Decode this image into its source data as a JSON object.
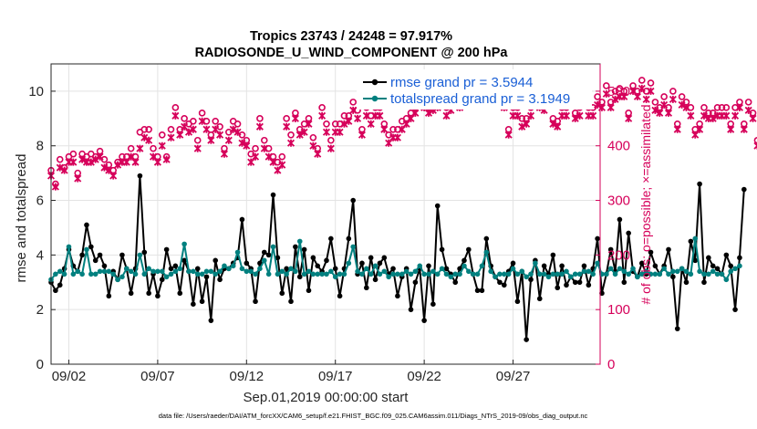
{
  "chart_data": {
    "type": "line",
    "title_line1": "Tropics 23743 / 24248 = 97.917%",
    "title_line2": "RADIOSONDE_U_WIND_COMPONENT @ 200 hPa",
    "xlabel": "Sep.01,2019 00:00:00 start",
    "ylabel": "rmse and totalspread",
    "ylabel_right": "# of obs: o=possible; ×=assimilated",
    "footer": "data file: /Users/raeder/DAI/ATM_forcXX/CAM6_setup/f.e21.FHIST_BGC.f09_025.CAM6assim.011/Diags_NTrS_2019-09/obs_diag_output.nc",
    "xlim": [
      0,
      30.9
    ],
    "ylim": [
      0,
      11
    ],
    "ylim_right": [
      0,
      550
    ],
    "x_ticks": [
      {
        "pos": 1,
        "label": "09/02"
      },
      {
        "pos": 6,
        "label": "09/07"
      },
      {
        "pos": 11,
        "label": "09/12"
      },
      {
        "pos": 16,
        "label": "09/17"
      },
      {
        "pos": 21,
        "label": "09/22"
      },
      {
        "pos": 26,
        "label": "09/27"
      }
    ],
    "y_ticks": [
      "0",
      "2",
      "4",
      "6",
      "8",
      "10"
    ],
    "y_ticks_right": [
      "0",
      "100",
      "200",
      "300",
      "400",
      "500"
    ],
    "time_step_days": 0.25,
    "legend": [
      {
        "label": "rmse grand pr = 3.5944",
        "color": "#000000"
      },
      {
        "label": "totalspread grand pr = 3.1949",
        "color": "#00807f"
      }
    ],
    "series": [
      {
        "name": "rmse",
        "color": "#000000",
        "values": [
          3.0,
          2.7,
          2.9,
          3.5,
          4.2,
          3.6,
          3.4,
          4.0,
          5.1,
          4.3,
          3.8,
          4.0,
          3.6,
          2.5,
          3.4,
          3.1,
          4.0,
          3.5,
          2.6,
          3.5,
          6.9,
          4.1,
          2.6,
          3.3,
          2.5,
          3.1,
          4.2,
          3.5,
          3.6,
          2.6,
          3.8,
          3.4,
          2.2,
          3.5,
          2.3,
          3.2,
          1.6,
          3.8,
          3.1,
          3.5,
          3.5,
          3.7,
          3.9,
          5.3,
          3.7,
          3.5,
          2.3,
          3.7,
          4.1,
          4.0,
          6.2,
          3.9,
          2.6,
          3.5,
          2.3,
          4.3,
          3.2,
          4.2,
          2.7,
          3.9,
          3.6,
          3.4,
          3.8,
          4.6,
          3.5,
          2.5,
          3.5,
          4.6,
          6.0,
          3.3,
          3.7,
          2.8,
          3.9,
          3.1,
          3.7,
          3.9,
          3.3,
          3.5,
          2.5,
          3.2,
          3.5,
          2.0,
          3.0,
          3.5,
          1.6,
          3.6,
          2.2,
          5.8,
          4.2,
          3.5,
          3.3,
          3.0,
          3.5,
          3.8,
          4.2,
          3.3,
          2.7,
          2.7,
          4.6,
          3.6,
          3.2,
          3.0,
          2.9,
          3.4,
          3.7,
          2.3,
          3.4,
          0.9,
          3.1,
          3.8,
          2.4,
          3.6,
          3.3,
          4.0,
          2.8,
          3.6,
          2.9,
          3.2,
          3.0,
          3.0,
          3.6,
          2.9,
          3.5,
          4.6,
          2.6,
          3.3,
          4.2,
          3.4,
          5.3,
          3.0,
          4.8,
          3.4,
          3.2,
          3.7,
          3.3,
          4.1,
          3.6,
          3.3,
          3.6,
          4.2,
          3.2,
          1.3,
          3.5,
          3.0,
          4.5,
          3.8,
          6.6,
          3.0,
          3.9,
          3.6,
          3.5,
          3.3,
          4.0,
          3.6,
          2.0,
          3.9,
          6.4
        ]
      },
      {
        "name": "totalspread",
        "color": "#00807f",
        "values": [
          3.1,
          3.3,
          3.4,
          3.3,
          4.3,
          3.3,
          3.4,
          3.3,
          4.2,
          3.3,
          3.3,
          3.4,
          3.4,
          3.4,
          3.3,
          3.1,
          3.2,
          3.5,
          3.4,
          3.3,
          4.0,
          3.3,
          3.5,
          3.4,
          3.4,
          3.4,
          3.2,
          3.3,
          3.4,
          3.5,
          4.4,
          3.4,
          3.4,
          3.3,
          3.3,
          3.4,
          3.4,
          3.3,
          3.4,
          3.6,
          3.5,
          3.6,
          4.1,
          3.5,
          3.4,
          3.4,
          3.3,
          3.5,
          3.8,
          3.3,
          4.3,
          3.3,
          3.4,
          3.3,
          3.5,
          3.4,
          4.5,
          3.3,
          3.4,
          3.3,
          3.3,
          3.3,
          3.3,
          3.4,
          3.2,
          3.3,
          3.3,
          3.7,
          4.3,
          3.4,
          3.3,
          3.5,
          3.3,
          3.6,
          3.3,
          3.4,
          3.2,
          3.3,
          3.3,
          3.3,
          3.4,
          3.3,
          3.4,
          3.6,
          3.3,
          3.3,
          3.4,
          3.3,
          3.5,
          3.3,
          3.2,
          3.3,
          3.3,
          3.6,
          3.4,
          3.3,
          3.3,
          3.6,
          4.1,
          3.4,
          3.2,
          3.3,
          3.3,
          3.3,
          3.5,
          3.3,
          3.4,
          3.2,
          3.3,
          3.7,
          3.3,
          3.3,
          3.2,
          3.3,
          3.3,
          3.3,
          3.4,
          3.2,
          3.3,
          3.3,
          3.4,
          3.4,
          3.3,
          3.7,
          3.3,
          3.3,
          3.5,
          3.3,
          3.5,
          3.4,
          3.3,
          3.5,
          3.2,
          3.3,
          3.4,
          3.3,
          3.3,
          3.3,
          3.5,
          3.3,
          3.4,
          3.4,
          3.5,
          3.4,
          3.3,
          4.6,
          3.4,
          3.3,
          3.3,
          3.4,
          3.3,
          3.3,
          3.1,
          3.4,
          3.5,
          3.6
        ]
      },
      {
        "name": "obs_possible",
        "color": "#d6005a",
        "marker": "circle",
        "axis": "right",
        "values": [
          355,
          330,
          375,
          360,
          380,
          385,
          350,
          385,
          380,
          385,
          380,
          390,
          375,
          365,
          355,
          370,
          380,
          380,
          395,
          380,
          425,
          430,
          430,
          395,
          380,
          420,
          380,
          430,
          470,
          430,
          450,
          440,
          445,
          410,
          460,
          445,
          420,
          445,
          435,
          395,
          425,
          445,
          440,
          420,
          410,
          385,
          395,
          450,
          410,
          395,
          380,
          370,
          380,
          450,
          420,
          460,
          430,
          440,
          450,
          415,
          395,
          470,
          440,
          410,
          440,
          440,
          455,
          455,
          480,
          465,
          430,
          470,
          455,
          470,
          470,
          440,
          420,
          430,
          430,
          445,
          450,
          460,
          470,
          490,
          480,
          470,
          480,
          480,
          520,
          470,
          480,
          495,
          480,
          495,
          510,
          505,
          500,
          510,
          500,
          490,
          500,
          505,
          480,
          430,
          470,
          470,
          450,
          450,
          470,
          500,
          480,
          480,
          510,
          450,
          445,
          470,
          470,
          520,
          460,
          470,
          500,
          470,
          470,
          490,
          480,
          510,
          480,
          500,
          505,
          500,
          460,
          510,
          500,
          520,
          500,
          515,
          480,
          470,
          490,
          470,
          500,
          440,
          490,
          480,
          470,
          430,
          440,
          470,
          460,
          460,
          470,
          470,
          470,
          440,
          470,
          480,
          440,
          480,
          460,
          410,
          440,
          430,
          420,
          430
        ]
      },
      {
        "name": "obs_assimilated",
        "color": "#d6005a",
        "marker": "x",
        "axis": "right",
        "values": [
          345,
          325,
          360,
          355,
          370,
          370,
          340,
          375,
          370,
          370,
          375,
          380,
          360,
          355,
          345,
          365,
          370,
          370,
          380,
          370,
          395,
          415,
          410,
          380,
          370,
          400,
          375,
          415,
          455,
          420,
          435,
          425,
          430,
          395,
          445,
          430,
          410,
          430,
          420,
          385,
          410,
          430,
          425,
          405,
          400,
          370,
          380,
          435,
          395,
          380,
          370,
          355,
          365,
          435,
          405,
          450,
          420,
          425,
          440,
          400,
          385,
          455,
          425,
          395,
          425,
          425,
          440,
          445,
          465,
          450,
          420,
          455,
          440,
          455,
          455,
          430,
          405,
          415,
          415,
          430,
          440,
          450,
          460,
          475,
          470,
          460,
          465,
          470,
          505,
          455,
          465,
          480,
          470,
          480,
          495,
          490,
          485,
          495,
          485,
          480,
          490,
          490,
          470,
          420,
          455,
          455,
          435,
          440,
          455,
          485,
          470,
          465,
          500,
          440,
          435,
          455,
          455,
          505,
          450,
          455,
          485,
          455,
          455,
          475,
          470,
          495,
          470,
          485,
          490,
          490,
          450,
          500,
          490,
          505,
          485,
          500,
          465,
          460,
          475,
          460,
          485,
          430,
          475,
          470,
          455,
          420,
          430,
          455,
          450,
          450,
          455,
          455,
          455,
          430,
          455,
          470,
          430,
          465,
          450,
          400,
          430,
          420,
          410,
          415
        ]
      }
    ]
  }
}
